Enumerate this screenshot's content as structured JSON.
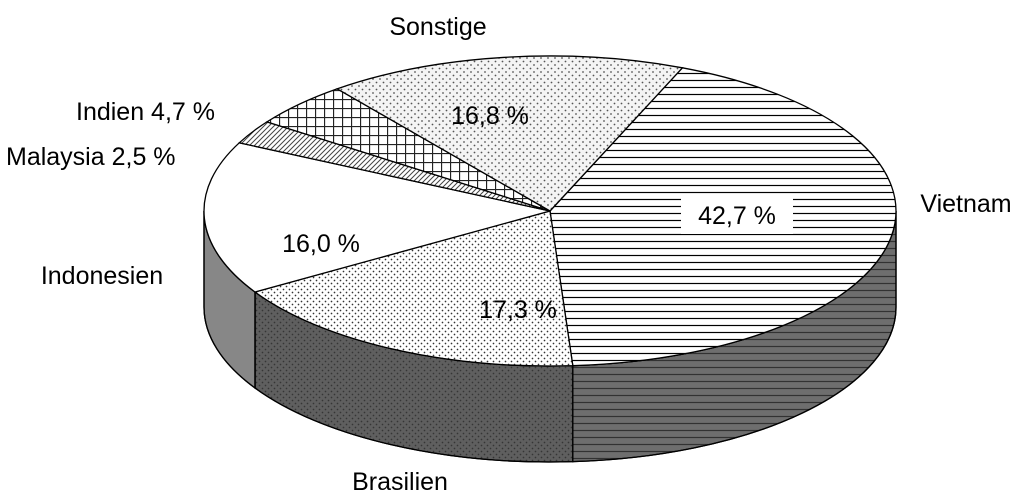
{
  "chart_data": {
    "type": "pie",
    "style": "3d",
    "title": "",
    "slices": [
      {
        "label": "Vietnam",
        "value": 42.7,
        "value_text": "42,7 %",
        "pattern": "horizontal-lines"
      },
      {
        "label": "Brasilien",
        "value": 17.3,
        "value_text": "17,3 %",
        "pattern": "fine-dots"
      },
      {
        "label": "Indonesien",
        "value": 16.0,
        "value_text": "16,0 %",
        "pattern": "solid-white"
      },
      {
        "label": "Malaysia",
        "value": 2.5,
        "value_text": "2,5 %",
        "pattern": "diagonal-hatch"
      },
      {
        "label": "Indien",
        "value": 4.7,
        "value_text": "4,7 %",
        "pattern": "grid"
      },
      {
        "label": "Sonstige",
        "value": 16.8,
        "value_text": "16,8 %",
        "pattern": "sparse-dots"
      }
    ]
  }
}
